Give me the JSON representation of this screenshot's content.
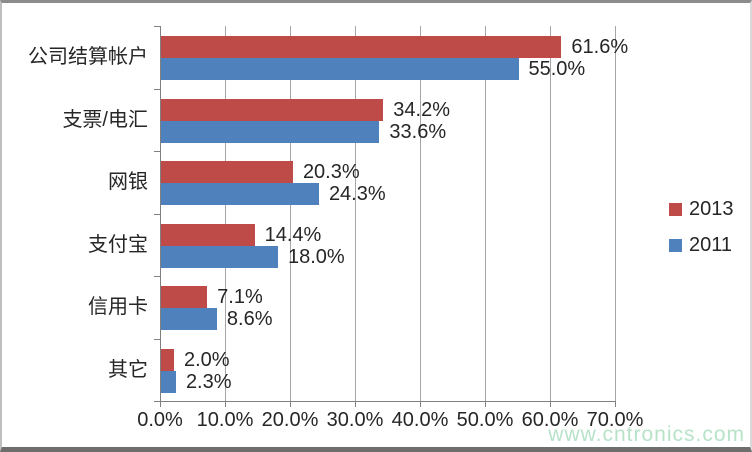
{
  "chart_data": {
    "type": "bar",
    "orientation": "horizontal",
    "title": "",
    "xlabel": "",
    "ylabel": "",
    "categories": [
      "公司结算帐户",
      "支票/电汇",
      "网银",
      "支付宝",
      "信用卡",
      "其它"
    ],
    "series": [
      {
        "name": "2013",
        "color": "#be4b48",
        "values": [
          61.6,
          34.2,
          20.3,
          14.4,
          7.1,
          2.0
        ]
      },
      {
        "name": "2011",
        "color": "#4f81bd",
        "values": [
          55.0,
          33.6,
          24.3,
          18.0,
          8.6,
          2.3
        ]
      }
    ],
    "data_labels": [
      "61.6%",
      "55.0%",
      "34.2%",
      "33.6%",
      "20.3%",
      "24.3%",
      "14.4%",
      "18.0%",
      "7.1%",
      "8.6%",
      "2.0%",
      "2.3%"
    ],
    "x_ticks": [
      "0.0%",
      "10.0%",
      "20.0%",
      "30.0%",
      "40.0%",
      "50.0%",
      "60.0%",
      "70.0%"
    ],
    "xlim": [
      0,
      70
    ],
    "grid": true,
    "legend_position": "right"
  },
  "colors": {
    "series_2013": "#be4b48",
    "series_2011": "#4f81bd",
    "gridline": "#a6a6a6",
    "axis": "#808080",
    "text": "#262626",
    "watermark": "#b7e3c9",
    "background": "#ffffff"
  },
  "watermark": "www.cntronics.com"
}
